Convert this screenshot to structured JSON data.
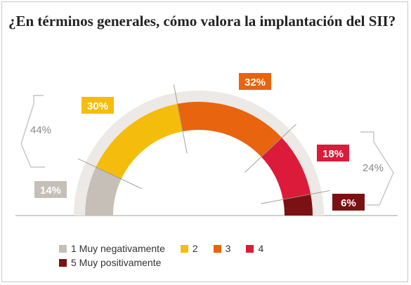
{
  "title": "¿En términos generales, cómo valora la implantación del SII?",
  "colors": {
    "track": "#ece9e6",
    "bracket": "#c8c4c0",
    "outer_label_text": "#8a8a8a"
  },
  "chart_data": {
    "type": "pie",
    "style": "semicircle-donut",
    "categories": [
      "1 Muy negativamente",
      "2",
      "3",
      "4",
      "5 Muy positivamente"
    ],
    "values": [
      14,
      30,
      32,
      18,
      6
    ],
    "value_labels": [
      "14%",
      "30%",
      "32%",
      "18%",
      "6%"
    ],
    "colors": [
      "#c6bfb8",
      "#f5bd0b",
      "#e8640e",
      "#dc1a3a",
      "#7a1213"
    ],
    "groups": [
      {
        "label": "44%",
        "side": "left",
        "covers": [
          "1 Muy negativamente",
          "2"
        ]
      },
      {
        "label": "24%",
        "side": "right",
        "covers": [
          "4",
          "5 Muy positivamente"
        ]
      }
    ],
    "legend_position": "bottom"
  }
}
